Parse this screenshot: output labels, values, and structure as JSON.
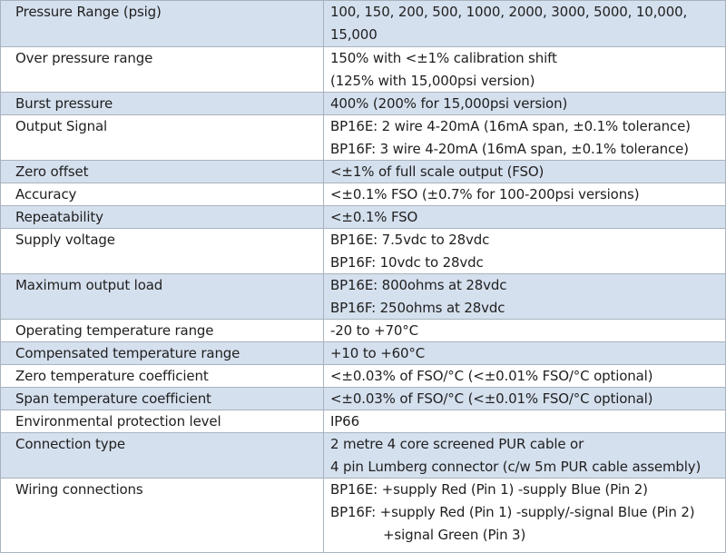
{
  "spec_table": {
    "rows": [
      {
        "label": "Pressure Range (psig)",
        "values": [
          "100, 150, 200, 500, 1000, 2000, 3000, 5000, 10,000,",
          "15,000"
        ]
      },
      {
        "label": "Over pressure range",
        "values": [
          "150% with <±1% calibration shift",
          "(125% with 15,000psi version)"
        ]
      },
      {
        "label": "Burst pressure",
        "values": [
          "400% (200% for 15,000psi version)"
        ]
      },
      {
        "label": "Output Signal",
        "values": [
          "BP16E: 2 wire 4-20mA (16mA span, ±0.1% tolerance)",
          "BP16F: 3 wire 4-20mA (16mA span, ±0.1% tolerance)"
        ]
      },
      {
        "label": "Zero offset",
        "values": [
          "<±1% of full scale output (FSO)"
        ]
      },
      {
        "label": "Accuracy",
        "values": [
          "<±0.1% FSO (±0.7% for 100-200psi versions)"
        ]
      },
      {
        "label": "Repeatability",
        "values": [
          "<±0.1% FSO"
        ]
      },
      {
        "label": "Supply voltage",
        "values": [
          "BP16E: 7.5vdc to 28vdc",
          "BP16F: 10vdc to 28vdc"
        ]
      },
      {
        "label": "Maximum output load",
        "values": [
          "BP16E: 800ohms at 28vdc",
          "BP16F: 250ohms at 28vdc"
        ]
      },
      {
        "label": "Operating temperature range",
        "values": [
          "-20 to +70°C"
        ]
      },
      {
        "label": "Compensated temperature range",
        "values": [
          "+10 to +60°C"
        ]
      },
      {
        "label": "Zero temperature coefficient",
        "values": [
          "<±0.03% of FSO/°C (<±0.01% FSO/°C optional)"
        ]
      },
      {
        "label": "Span temperature coefficient",
        "values": [
          "<±0.03% of FSO/°C (<±0.01% FSO/°C optional)"
        ]
      },
      {
        "label": "Environmental protection level",
        "values": [
          "IP66"
        ]
      },
      {
        "label": "Connection type",
        "values": [
          "2 metre 4 core screened PUR cable or",
          "4 pin Lumberg connector (c/w 5m PUR cable assembly)"
        ]
      },
      {
        "label": "Wiring connections",
        "values": [
          "BP16E: +supply Red (Pin 1)  -supply Blue (Pin 2)",
          "BP16F: +supply Red (Pin 1)  -supply/-signal Blue (Pin 2)",
          "+signal Green (Pin 3)"
        ]
      }
    ]
  },
  "colors": {
    "shaded_row": "#d5e0ee",
    "plain_row": "#ffffff",
    "border": "#a9b3bf",
    "text": "#1f1f1f"
  }
}
